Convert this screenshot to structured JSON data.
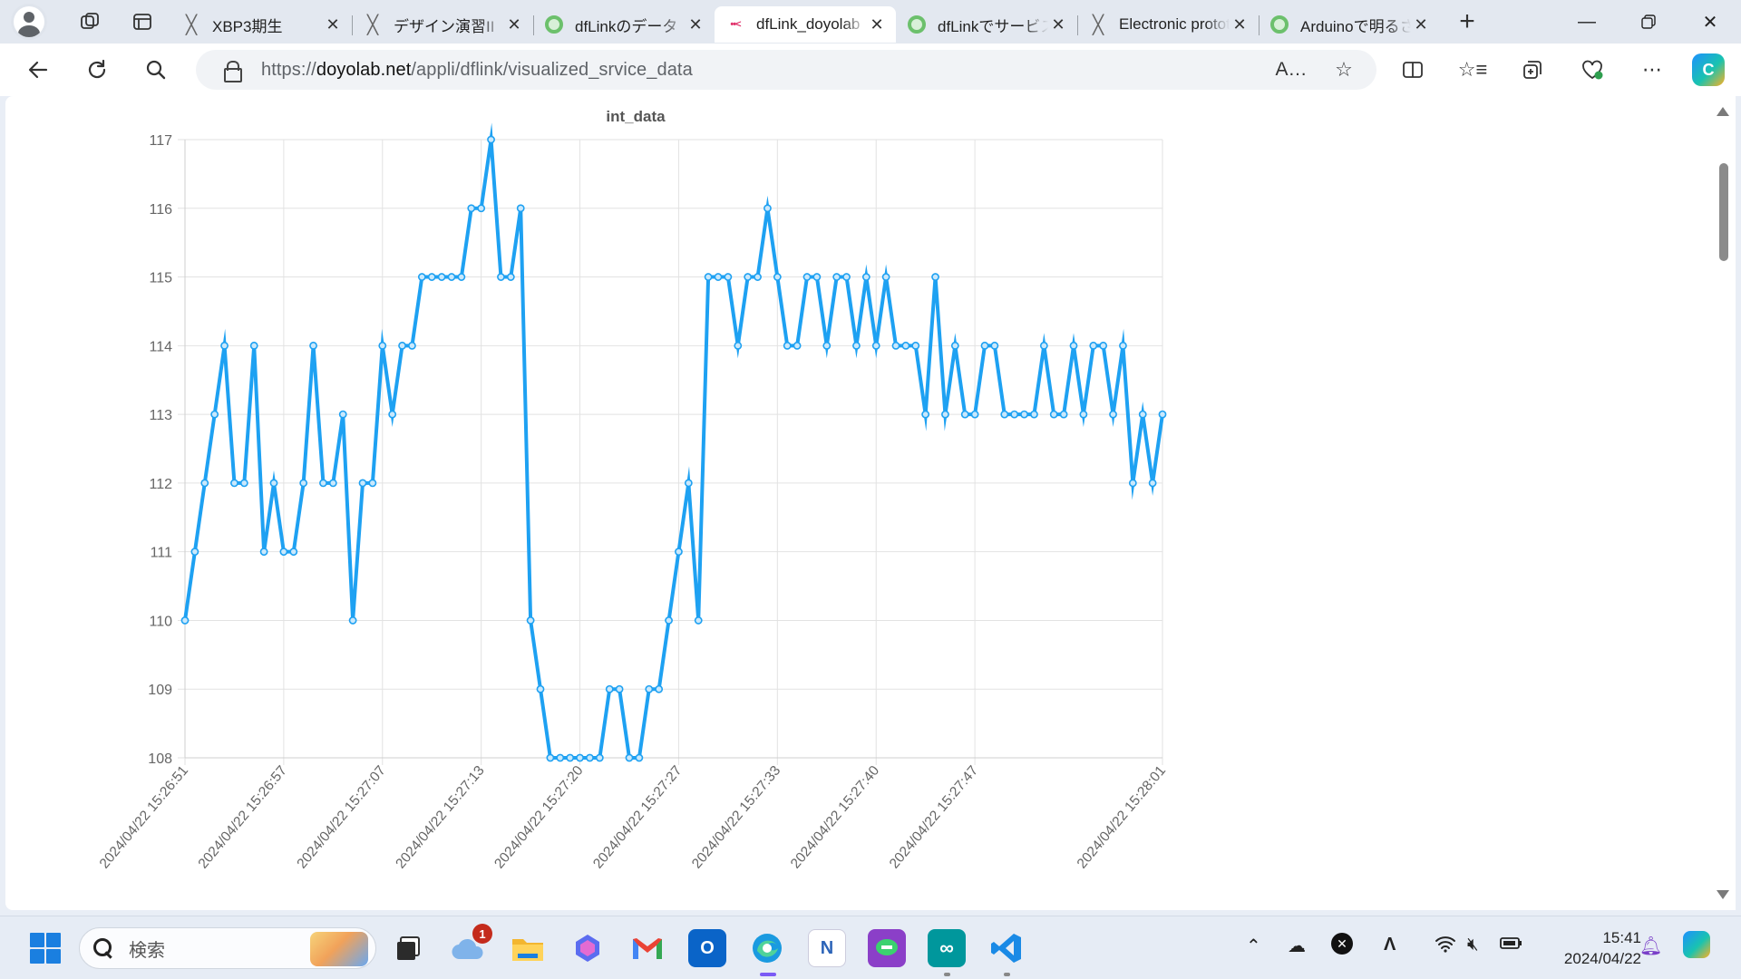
{
  "browser": {
    "tabs": [
      {
        "title": "XBP3期生",
        "favicon": "x-logo-icon"
      },
      {
        "title": "デザイン演習II",
        "favicon": "x-logo-icon"
      },
      {
        "title": "dfLinkのデータ",
        "favicon": "green-ring-icon"
      },
      {
        "title": "dfLink_doyolab",
        "favicon": "dflink-icon",
        "active": true
      },
      {
        "title": "dfLinkでサービス",
        "favicon": "green-ring-icon"
      },
      {
        "title": "Electronic prototyping",
        "favicon": "x-logo-icon"
      },
      {
        "title": "Arduinoで明るさ",
        "favicon": "green-ring-icon"
      }
    ],
    "url_prefix": "https://",
    "url_host": "doyolab.net",
    "url_path": "/appli/dflink/visualized_srvice_data"
  },
  "chart_data": {
    "type": "line",
    "title": "int_data",
    "xlabel": "",
    "ylabel": "",
    "ylim": [
      108,
      117
    ],
    "yticks": [
      108,
      109,
      110,
      111,
      112,
      113,
      114,
      115,
      116,
      117
    ],
    "xtick_labels": [
      "2024/04/22 15:26:51",
      "2024/04/22 15:26:57",
      "2024/04/22 15:27:07",
      "2024/04/22 15:27:13",
      "2024/04/22 15:27:20",
      "2024/04/22 15:27:27",
      "2024/04/22 15:27:33",
      "2024/04/22 15:27:40",
      "2024/04/22 15:27:47",
      "2024/04/22 15:28:01"
    ],
    "xtick_positions": [
      0,
      10,
      20,
      30,
      40,
      50,
      60,
      70,
      80,
      99
    ],
    "color": "#1ea1f2",
    "grid": true,
    "series": [
      {
        "name": "",
        "values": [
          110,
          111,
          112,
          113,
          114,
          112,
          112,
          114,
          111,
          112,
          111,
          111,
          112,
          114,
          112,
          112,
          113,
          110,
          112,
          112,
          114,
          113,
          114,
          114,
          115,
          115,
          115,
          115,
          115,
          116,
          116,
          117,
          115,
          115,
          116,
          110,
          109,
          108,
          108,
          108,
          108,
          108,
          108,
          109,
          109,
          108,
          108,
          109,
          109,
          110,
          111,
          112,
          110,
          115,
          115,
          115,
          114,
          115,
          115,
          116,
          115,
          114,
          114,
          115,
          115,
          114,
          115,
          115,
          114,
          115,
          114,
          115,
          114,
          114,
          114,
          113,
          115,
          113,
          114,
          113,
          113,
          114,
          114,
          113,
          113,
          113,
          113,
          114,
          113,
          113,
          114,
          113,
          114,
          114,
          113,
          114,
          112,
          113,
          112,
          113
        ]
      }
    ]
  },
  "taskbar": {
    "search_placeholder": "検索",
    "weather_badge": "1",
    "time": "15:41",
    "date": "2024/04/22"
  }
}
